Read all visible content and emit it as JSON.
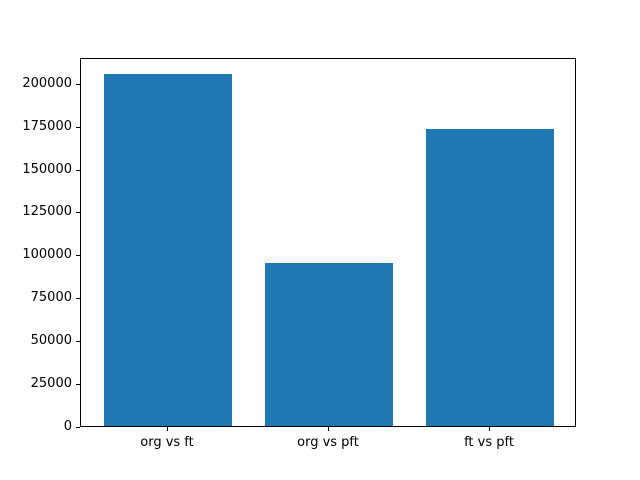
{
  "chart_data": {
    "type": "bar",
    "title": "",
    "xlabel": "",
    "ylabel": "",
    "categories": [
      "org vs ft",
      "org vs pft",
      "ft vs pft"
    ],
    "values": [
      205000,
      95000,
      173000
    ],
    "yticks": [
      0,
      25000,
      50000,
      75000,
      100000,
      125000,
      150000,
      175000,
      200000
    ],
    "ylim": [
      0,
      215000
    ],
    "bar_color": "#1f77b4",
    "spine_color": "#000000",
    "background_color": "#ffffff",
    "grid": false,
    "legend": null,
    "bar_width_units": 0.8
  }
}
